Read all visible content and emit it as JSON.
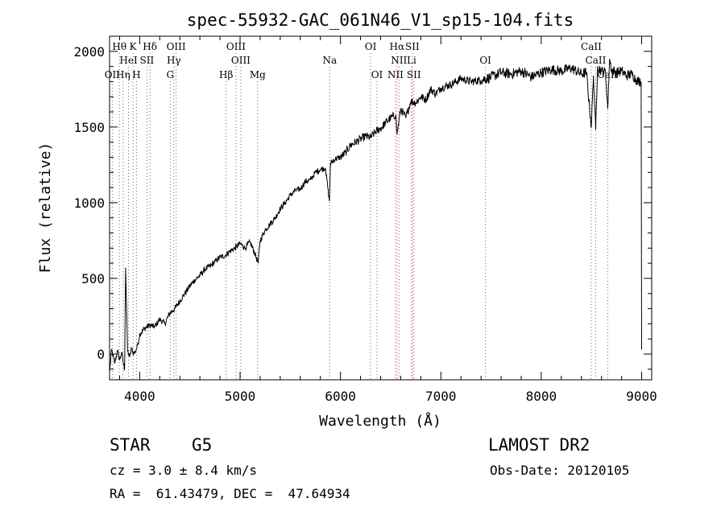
{
  "chart_data": {
    "type": "line",
    "title": "spec-55932-GAC_061N46_V1_sp15-104.fits",
    "xlabel": "Wavelength (Å)",
    "ylabel": "Flux (relative)",
    "xlim": [
      3700,
      9100
    ],
    "ylim": [
      -170,
      2100
    ],
    "xticks": [
      4000,
      5000,
      6000,
      7000,
      8000,
      9000
    ],
    "yticks": [
      0,
      500,
      1000,
      1500,
      2000
    ],
    "grid": false,
    "series": [
      {
        "color": "#000000",
        "x": [
          3700,
          3720,
          3750,
          3780,
          3800,
          3820,
          3840,
          3850,
          3860,
          3880,
          3900,
          3920,
          3940,
          3960,
          3980,
          4000,
          4050,
          4100,
          4150,
          4200,
          4250,
          4300,
          4350,
          4400,
          4450,
          4500,
          4550,
          4600,
          4650,
          4700,
          4750,
          4800,
          4850,
          4900,
          4950,
          5000,
          5050,
          5100,
          5150,
          5180,
          5200,
          5250,
          5300,
          5350,
          5400,
          5450,
          5500,
          5550,
          5600,
          5650,
          5700,
          5750,
          5800,
          5850,
          5890,
          5900,
          5950,
          6000,
          6050,
          6100,
          6150,
          6200,
          6250,
          6300,
          6350,
          6400,
          6450,
          6500,
          6550,
          6563,
          6600,
          6650,
          6700,
          6750,
          6800,
          6850,
          6900,
          6950,
          7000,
          7100,
          7200,
          7300,
          7400,
          7500,
          7600,
          7700,
          7800,
          7900,
          8000,
          8100,
          8200,
          8300,
          8400,
          8450,
          8498,
          8520,
          8542,
          8560,
          8600,
          8640,
          8662,
          8680,
          8700,
          8750,
          8800,
          8850,
          8900,
          8950,
          8980,
          8995,
          9000
        ],
        "values": [
          -120,
          30,
          -60,
          20,
          -40,
          10,
          -70,
          -100,
          570,
          20,
          -20,
          40,
          0,
          20,
          60,
          130,
          170,
          190,
          180,
          230,
          200,
          270,
          300,
          350,
          400,
          450,
          490,
          520,
          560,
          580,
          610,
          640,
          650,
          680,
          700,
          730,
          700,
          740,
          660,
          600,
          750,
          820,
          860,
          900,
          960,
          1000,
          1050,
          1080,
          1090,
          1140,
          1150,
          1200,
          1220,
          1230,
          1010,
          1260,
          1290,
          1300,
          1330,
          1380,
          1400,
          1420,
          1440,
          1430,
          1470,
          1490,
          1530,
          1560,
          1580,
          1450,
          1620,
          1560,
          1670,
          1660,
          1700,
          1680,
          1750,
          1720,
          1760,
          1780,
          1820,
          1800,
          1810,
          1830,
          1860,
          1850,
          1870,
          1830,
          1860,
          1880,
          1870,
          1890,
          1850,
          1860,
          1500,
          1840,
          1480,
          1900,
          1870,
          1860,
          1620,
          1950,
          1880,
          1860,
          1870,
          1840,
          1850,
          1810,
          1800,
          1800,
          30
        ]
      }
    ],
    "lines_top": [
      {
        "label": "Hθ",
        "x": 3798
      },
      {
        "label": "K",
        "x": 3934
      },
      {
        "label": "Hδ",
        "x": 4102
      },
      {
        "label": "OIII",
        "x": 4363
      },
      {
        "label": "OIII",
        "x": 4959
      },
      {
        "label": "OI",
        "x": 6300
      },
      {
        "label": "Hα",
        "x": 6563
      },
      {
        "label": "SII",
        "x": 6716
      },
      {
        "label": "CaII",
        "x": 8498
      }
    ],
    "lines_mid": [
      {
        "label": "HeI",
        "x": 3889
      },
      {
        "label": "SII",
        "x": 4072
      },
      {
        "label": "Hγ",
        "x": 4340
      },
      {
        "label": "OIII",
        "x": 5007
      },
      {
        "label": "Na",
        "x": 5893
      },
      {
        "label": "NII",
        "x": 6583
      },
      {
        "label": "Li",
        "x": 6708
      },
      {
        "label": "OI",
        "x": 7444
      },
      {
        "label": "CaII",
        "x": 8542
      }
    ],
    "lines_low": [
      {
        "label": "OII",
        "x": 3727
      },
      {
        "label": "Hη",
        "x": 3835
      },
      {
        "label": "H",
        "x": 3968
      },
      {
        "label": "G",
        "x": 4304
      },
      {
        "label": "Hβ",
        "x": 4861
      },
      {
        "label": "Mg",
        "x": 5175
      },
      {
        "label": "OI",
        "x": 6364
      },
      {
        "label": "NII",
        "x": 6548
      },
      {
        "label": "SII",
        "x": 6731
      },
      {
        "label": "CaII",
        "x": 8662
      }
    ]
  },
  "info": {
    "class_label": "STAR",
    "subclass": "G5",
    "survey": "LAMOST DR2",
    "cz": "cz = 3.0 ± 8.4 km/s",
    "obs_date": "Obs-Date: 20120105",
    "coords": "RA =  61.43479, DEC =  47.64934"
  }
}
